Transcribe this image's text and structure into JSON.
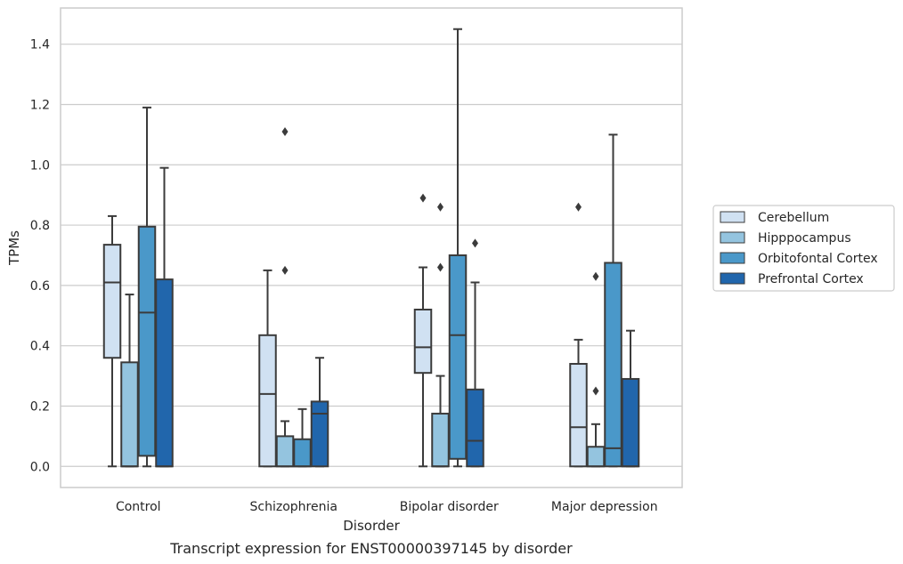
{
  "chart_data": {
    "type": "box",
    "caption": "Transcript expression for ENST00000397145 by disorder",
    "xlabel": "Disorder",
    "ylabel": "TPMs",
    "ylim": [
      -0.07,
      1.52
    ],
    "yticks": [
      0.0,
      0.2,
      0.4,
      0.6,
      0.8,
      1.0,
      1.2,
      1.4
    ],
    "grid": true,
    "legend_position": "right",
    "categories": [
      "Control",
      "Schizophrenia",
      "Bipolar disorder",
      "Major depression"
    ],
    "series": [
      {
        "name": "Cerebellum",
        "color": "#d0e1f2",
        "boxes": [
          {
            "min": 0.0,
            "q1": 0.36,
            "median": 0.61,
            "q3": 0.735,
            "max": 0.83,
            "outliers": []
          },
          {
            "min": 0.0,
            "q1": 0.0,
            "median": 0.24,
            "q3": 0.435,
            "max": 0.65,
            "outliers": []
          },
          {
            "min": 0.0,
            "q1": 0.31,
            "median": 0.395,
            "q3": 0.52,
            "max": 0.66,
            "outliers": [
              0.89
            ]
          },
          {
            "min": 0.0,
            "q1": 0.0,
            "median": 0.13,
            "q3": 0.34,
            "max": 0.42,
            "outliers": [
              0.86
            ]
          }
        ]
      },
      {
        "name": "Hipppocampus",
        "color": "#94c4df",
        "boxes": [
          {
            "min": 0.0,
            "q1": 0.0,
            "median": 0.0,
            "q3": 0.345,
            "max": 0.57,
            "outliers": []
          },
          {
            "min": 0.0,
            "q1": 0.0,
            "median": 0.0,
            "q3": 0.1,
            "max": 0.15,
            "outliers": [
              0.65,
              1.11
            ]
          },
          {
            "min": 0.0,
            "q1": 0.0,
            "median": 0.0,
            "q3": 0.175,
            "max": 0.3,
            "outliers": [
              0.66,
              0.86
            ]
          },
          {
            "min": 0.0,
            "q1": 0.0,
            "median": 0.0,
            "q3": 0.065,
            "max": 0.14,
            "outliers": [
              0.25,
              0.63
            ]
          }
        ]
      },
      {
        "name": "Orbitofontal Cortex",
        "color": "#4a98c9",
        "boxes": [
          {
            "min": 0.0,
            "q1": 0.035,
            "median": 0.51,
            "q3": 0.795,
            "max": 1.19,
            "outliers": []
          },
          {
            "min": 0.0,
            "q1": 0.0,
            "median": 0.0,
            "q3": 0.09,
            "max": 0.19,
            "outliers": []
          },
          {
            "min": 0.0,
            "q1": 0.025,
            "median": 0.435,
            "q3": 0.7,
            "max": 1.45,
            "outliers": []
          },
          {
            "min": 0.0,
            "q1": 0.0,
            "median": 0.06,
            "q3": 0.675,
            "max": 1.1,
            "outliers": []
          }
        ]
      },
      {
        "name": "Prefrontal Cortex",
        "color": "#2166ac",
        "boxes": [
          {
            "min": 0.0,
            "q1": 0.0,
            "median": 0.0,
            "q3": 0.62,
            "max": 0.99,
            "outliers": []
          },
          {
            "min": 0.0,
            "q1": 0.0,
            "median": 0.175,
            "q3": 0.215,
            "max": 0.36,
            "outliers": []
          },
          {
            "min": 0.0,
            "q1": 0.0,
            "median": 0.085,
            "q3": 0.255,
            "max": 0.61,
            "outliers": [
              0.74
            ]
          },
          {
            "min": 0.0,
            "q1": 0.0,
            "median": 0.0,
            "q3": 0.29,
            "max": 0.45,
            "outliers": []
          }
        ]
      }
    ]
  }
}
